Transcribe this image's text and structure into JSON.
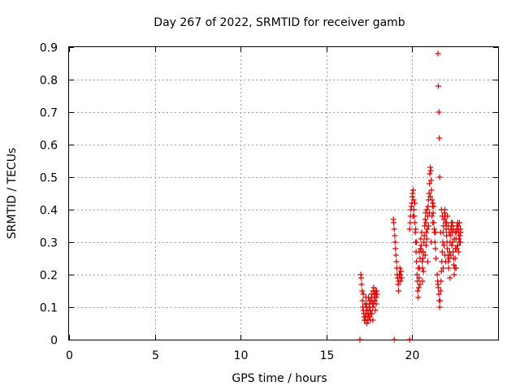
{
  "chart_data": {
    "type": "scatter",
    "title": "Day 267 of 2022, SRMTID for receiver gamb",
    "xlabel": "GPS time / hours",
    "ylabel": "SRMTID / TECUs",
    "xlim": [
      0,
      25
    ],
    "ylim": [
      0,
      0.9
    ],
    "grid": true,
    "x_ticks": [
      0,
      5,
      10,
      15,
      20
    ],
    "x_tick_labels": [
      "0",
      "5",
      "10",
      "15",
      "20"
    ],
    "y_ticks": [
      0,
      0.1,
      0.2,
      0.3,
      0.4,
      0.5,
      0.6,
      0.7,
      0.8,
      0.9
    ],
    "y_tick_labels": [
      "0",
      "0.1",
      "0.2",
      "0.3",
      "0.4",
      "0.5",
      "0.6",
      "0.7",
      "0.8",
      "0.9"
    ],
    "marker": "+",
    "color": "#e00000",
    "series": [
      {
        "name": "SRMTID",
        "points": [
          [
            16.95,
            0.0
          ],
          [
            18.95,
            0.0
          ],
          [
            19.85,
            0.0
          ],
          [
            17.0,
            0.2
          ],
          [
            17.02,
            0.19
          ],
          [
            17.05,
            0.17
          ],
          [
            17.08,
            0.15
          ],
          [
            17.1,
            0.12
          ],
          [
            17.12,
            0.1
          ],
          [
            17.15,
            0.09
          ],
          [
            17.18,
            0.08
          ],
          [
            17.2,
            0.07
          ],
          [
            17.22,
            0.06
          ],
          [
            17.25,
            0.06
          ],
          [
            17.28,
            0.07
          ],
          [
            17.3,
            0.08
          ],
          [
            17.32,
            0.1
          ],
          [
            17.35,
            0.11
          ],
          [
            17.38,
            0.09
          ],
          [
            17.4,
            0.07
          ],
          [
            17.42,
            0.06
          ],
          [
            17.45,
            0.08
          ],
          [
            17.48,
            0.1
          ],
          [
            17.5,
            0.12
          ],
          [
            17.52,
            0.11
          ],
          [
            17.55,
            0.09
          ],
          [
            17.58,
            0.08
          ],
          [
            17.6,
            0.12
          ],
          [
            17.62,
            0.14
          ],
          [
            17.65,
            0.13
          ],
          [
            17.68,
            0.11
          ],
          [
            17.7,
            0.1
          ],
          [
            17.72,
            0.15
          ],
          [
            17.75,
            0.16
          ],
          [
            17.78,
            0.14
          ],
          [
            17.8,
            0.13
          ],
          [
            17.82,
            0.12
          ],
          [
            17.85,
            0.15
          ],
          [
            17.88,
            0.14
          ],
          [
            17.9,
            0.13
          ],
          [
            17.92,
            0.15
          ],
          [
            17.95,
            0.14
          ],
          [
            17.15,
            0.14
          ],
          [
            17.25,
            0.11
          ],
          [
            17.35,
            0.05
          ],
          [
            17.45,
            0.13
          ],
          [
            17.55,
            0.06
          ],
          [
            17.65,
            0.08
          ],
          [
            17.75,
            0.11
          ],
          [
            17.85,
            0.09
          ],
          [
            17.3,
            0.13
          ],
          [
            17.5,
            0.07
          ],
          [
            17.7,
            0.06
          ],
          [
            17.9,
            0.11
          ],
          [
            18.9,
            0.37
          ],
          [
            18.92,
            0.36
          ],
          [
            18.95,
            0.34
          ],
          [
            18.98,
            0.32
          ],
          [
            19.0,
            0.3
          ],
          [
            19.02,
            0.28
          ],
          [
            19.05,
            0.26
          ],
          [
            19.08,
            0.24
          ],
          [
            19.1,
            0.22
          ],
          [
            19.12,
            0.2
          ],
          [
            19.15,
            0.19
          ],
          [
            19.18,
            0.17
          ],
          [
            19.2,
            0.15
          ],
          [
            19.22,
            0.18
          ],
          [
            19.25,
            0.2
          ],
          [
            19.28,
            0.22
          ],
          [
            19.3,
            0.2
          ],
          [
            19.32,
            0.18
          ],
          [
            19.35,
            0.21
          ],
          [
            19.38,
            0.19
          ],
          [
            19.85,
            0.34
          ],
          [
            19.88,
            0.36
          ],
          [
            19.9,
            0.38
          ],
          [
            19.92,
            0.4
          ],
          [
            19.95,
            0.41
          ],
          [
            19.98,
            0.42
          ],
          [
            20.0,
            0.44
          ],
          [
            20.02,
            0.45
          ],
          [
            20.05,
            0.46
          ],
          [
            20.08,
            0.43
          ],
          [
            20.1,
            0.4
          ],
          [
            20.12,
            0.38
          ],
          [
            20.15,
            0.36
          ],
          [
            20.18,
            0.33
          ],
          [
            20.2,
            0.3
          ],
          [
            20.22,
            0.27
          ],
          [
            20.25,
            0.24
          ],
          [
            20.28,
            0.2
          ],
          [
            20.3,
            0.18
          ],
          [
            20.32,
            0.15
          ],
          [
            20.35,
            0.13
          ],
          [
            20.38,
            0.16
          ],
          [
            20.4,
            0.19
          ],
          [
            20.42,
            0.22
          ],
          [
            20.45,
            0.25
          ],
          [
            20.48,
            0.28
          ],
          [
            20.5,
            0.31
          ],
          [
            20.52,
            0.29
          ],
          [
            20.55,
            0.27
          ],
          [
            20.58,
            0.24
          ],
          [
            20.6,
            0.22
          ],
          [
            20.62,
            0.25
          ],
          [
            20.65,
            0.27
          ],
          [
            20.68,
            0.3
          ],
          [
            20.7,
            0.32
          ],
          [
            20.72,
            0.35
          ],
          [
            20.75,
            0.37
          ],
          [
            20.78,
            0.39
          ],
          [
            20.8,
            0.36
          ],
          [
            20.82,
            0.33
          ],
          [
            20.85,
            0.31
          ],
          [
            20.88,
            0.34
          ],
          [
            20.9,
            0.38
          ],
          [
            20.92,
            0.41
          ],
          [
            20.95,
            0.43
          ],
          [
            20.98,
            0.45
          ],
          [
            21.0,
            0.48
          ],
          [
            21.02,
            0.51
          ],
          [
            21.05,
            0.53
          ],
          [
            21.08,
            0.52
          ],
          [
            21.1,
            0.49
          ],
          [
            21.12,
            0.46
          ],
          [
            21.15,
            0.43
          ],
          [
            21.18,
            0.41
          ],
          [
            21.2,
            0.42
          ],
          [
            21.22,
            0.39
          ],
          [
            21.25,
            0.36
          ],
          [
            21.28,
            0.34
          ],
          [
            21.3,
            0.33
          ],
          [
            21.32,
            0.3
          ],
          [
            21.35,
            0.28
          ],
          [
            21.38,
            0.25
          ],
          [
            20.05,
            0.38
          ],
          [
            20.15,
            0.42
          ],
          [
            20.25,
            0.3
          ],
          [
            20.35,
            0.22
          ],
          [
            20.45,
            0.17
          ],
          [
            20.55,
            0.33
          ],
          [
            20.65,
            0.21
          ],
          [
            20.75,
            0.26
          ],
          [
            20.85,
            0.4
          ],
          [
            20.95,
            0.35
          ],
          [
            21.05,
            0.44
          ],
          [
            21.15,
            0.38
          ],
          [
            21.25,
            0.41
          ],
          [
            21.35,
            0.33
          ],
          [
            20.2,
            0.34
          ],
          [
            20.4,
            0.27
          ],
          [
            20.6,
            0.18
          ],
          [
            20.8,
            0.29
          ],
          [
            21.0,
            0.39
          ],
          [
            21.2,
            0.36
          ],
          [
            21.1,
            0.3
          ],
          [
            20.9,
            0.24
          ],
          [
            21.5,
            0.88
          ],
          [
            21.52,
            0.78
          ],
          [
            21.55,
            0.7
          ],
          [
            21.58,
            0.62
          ],
          [
            21.6,
            0.5
          ],
          [
            21.45,
            0.2
          ],
          [
            21.48,
            0.18
          ],
          [
            21.5,
            0.17
          ],
          [
            21.52,
            0.16
          ],
          [
            21.55,
            0.14
          ],
          [
            21.58,
            0.12
          ],
          [
            21.6,
            0.1
          ],
          [
            21.62,
            0.12
          ],
          [
            21.65,
            0.15
          ],
          [
            21.68,
            0.18
          ],
          [
            21.7,
            0.21
          ],
          [
            21.72,
            0.24
          ],
          [
            21.75,
            0.27
          ],
          [
            21.78,
            0.3
          ],
          [
            21.8,
            0.33
          ],
          [
            21.82,
            0.35
          ],
          [
            21.85,
            0.37
          ],
          [
            21.88,
            0.39
          ],
          [
            21.9,
            0.4
          ],
          [
            21.92,
            0.38
          ],
          [
            21.95,
            0.36
          ],
          [
            21.98,
            0.34
          ],
          [
            22.0,
            0.32
          ],
          [
            22.02,
            0.3
          ],
          [
            22.05,
            0.28
          ],
          [
            22.08,
            0.26
          ],
          [
            22.1,
            0.24
          ],
          [
            22.12,
            0.22
          ],
          [
            22.15,
            0.25
          ],
          [
            22.18,
            0.27
          ],
          [
            22.2,
            0.3
          ],
          [
            22.22,
            0.32
          ],
          [
            22.25,
            0.34
          ],
          [
            22.28,
            0.36
          ],
          [
            22.3,
            0.35
          ],
          [
            22.32,
            0.33
          ],
          [
            22.35,
            0.3
          ],
          [
            22.38,
            0.27
          ],
          [
            22.4,
            0.25
          ],
          [
            22.42,
            0.23
          ],
          [
            22.45,
            0.2
          ],
          [
            22.48,
            0.22
          ],
          [
            22.5,
            0.25
          ],
          [
            22.52,
            0.28
          ],
          [
            22.55,
            0.31
          ],
          [
            22.58,
            0.33
          ],
          [
            22.6,
            0.35
          ],
          [
            22.62,
            0.34
          ],
          [
            22.65,
            0.36
          ],
          [
            22.68,
            0.35
          ],
          [
            22.7,
            0.33
          ],
          [
            22.72,
            0.31
          ],
          [
            22.75,
            0.3
          ],
          [
            22.78,
            0.32
          ],
          [
            22.8,
            0.34
          ],
          [
            22.82,
            0.33
          ],
          [
            21.65,
            0.33
          ],
          [
            21.75,
            0.38
          ],
          [
            21.85,
            0.29
          ],
          [
            21.95,
            0.24
          ],
          [
            22.05,
            0.38
          ],
          [
            22.15,
            0.33
          ],
          [
            22.25,
            0.26
          ],
          [
            22.35,
            0.36
          ],
          [
            22.45,
            0.31
          ],
          [
            22.55,
            0.22
          ],
          [
            22.65,
            0.29
          ],
          [
            22.75,
            0.36
          ],
          [
            21.7,
            0.4
          ],
          [
            21.9,
            0.26
          ],
          [
            22.1,
            0.35
          ],
          [
            22.3,
            0.29
          ],
          [
            22.5,
            0.33
          ],
          [
            22.7,
            0.27
          ],
          [
            21.8,
            0.22
          ],
          [
            22.0,
            0.36
          ],
          [
            22.2,
            0.19
          ],
          [
            22.4,
            0.34
          ],
          [
            22.6,
            0.28
          ],
          [
            22.8,
            0.3
          ]
        ]
      }
    ]
  }
}
